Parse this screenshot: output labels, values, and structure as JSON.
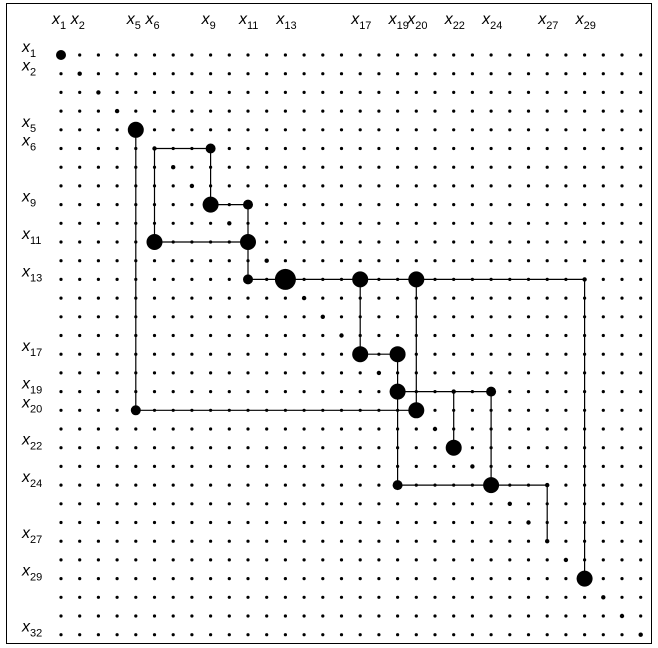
{
  "figure": {
    "variable": "x",
    "matrix_size": 32,
    "column_labels": [
      {
        "index": 1,
        "name": "x",
        "sub": "1"
      },
      {
        "index": 2,
        "name": "x",
        "sub": "2"
      },
      {
        "index": 5,
        "name": "x",
        "sub": "5"
      },
      {
        "index": 6,
        "name": "x",
        "sub": "6"
      },
      {
        "index": 9,
        "name": "x",
        "sub": "9"
      },
      {
        "index": 11,
        "name": "x",
        "sub": "11"
      },
      {
        "index": 13,
        "name": "x",
        "sub": "13"
      },
      {
        "index": 17,
        "name": "x",
        "sub": "17"
      },
      {
        "index": 19,
        "name": "x",
        "sub": "19"
      },
      {
        "index": 20,
        "name": "x",
        "sub": "20"
      },
      {
        "index": 22,
        "name": "x",
        "sub": "22"
      },
      {
        "index": 24,
        "name": "x",
        "sub": "24"
      },
      {
        "index": 27,
        "name": "x",
        "sub": "27"
      },
      {
        "index": 29,
        "name": "x",
        "sub": "29"
      }
    ],
    "row_labels": [
      {
        "index": 1,
        "name": "x",
        "sub": "1"
      },
      {
        "index": 2,
        "name": "x",
        "sub": "2"
      },
      {
        "index": 5,
        "name": "x",
        "sub": "5"
      },
      {
        "index": 6,
        "name": "x",
        "sub": "6"
      },
      {
        "index": 9,
        "name": "x",
        "sub": "9"
      },
      {
        "index": 11,
        "name": "x",
        "sub": "11"
      },
      {
        "index": 13,
        "name": "x",
        "sub": "13"
      },
      {
        "index": 17,
        "name": "x",
        "sub": "17"
      },
      {
        "index": 19,
        "name": "x",
        "sub": "19"
      },
      {
        "index": 20,
        "name": "x",
        "sub": "20"
      },
      {
        "index": 22,
        "name": "x",
        "sub": "22"
      },
      {
        "index": 24,
        "name": "x",
        "sub": "24"
      },
      {
        "index": 27,
        "name": "x",
        "sub": "27"
      },
      {
        "index": 29,
        "name": "x",
        "sub": "29"
      },
      {
        "index": 32,
        "name": "x",
        "sub": "32"
      }
    ],
    "entries": [
      {
        "row": 1,
        "col": 1,
        "size": "medium"
      },
      {
        "row": 2,
        "col": 2,
        "size": "small"
      },
      {
        "row": 3,
        "col": 3,
        "size": "small"
      },
      {
        "row": 4,
        "col": 4,
        "size": "small"
      },
      {
        "row": 5,
        "col": 5,
        "size": "large"
      },
      {
        "row": 6,
        "col": 6,
        "size": "small"
      },
      {
        "row": 6,
        "col": 9,
        "size": "medium"
      },
      {
        "row": 7,
        "col": 7,
        "size": "small"
      },
      {
        "row": 8,
        "col": 8,
        "size": "small"
      },
      {
        "row": 9,
        "col": 9,
        "size": "large"
      },
      {
        "row": 9,
        "col": 11,
        "size": "medium"
      },
      {
        "row": 10,
        "col": 10,
        "size": "small"
      },
      {
        "row": 11,
        "col": 6,
        "size": "large"
      },
      {
        "row": 11,
        "col": 11,
        "size": "large"
      },
      {
        "row": 12,
        "col": 12,
        "size": "small"
      },
      {
        "row": 13,
        "col": 11,
        "size": "medium"
      },
      {
        "row": 13,
        "col": 13,
        "size": "xlarge"
      },
      {
        "row": 13,
        "col": 17,
        "size": "large"
      },
      {
        "row": 13,
        "col": 20,
        "size": "large"
      },
      {
        "row": 13,
        "col": 29,
        "size": "small"
      },
      {
        "row": 14,
        "col": 14,
        "size": "small"
      },
      {
        "row": 15,
        "col": 15,
        "size": "small"
      },
      {
        "row": 16,
        "col": 16,
        "size": "small"
      },
      {
        "row": 17,
        "col": 17,
        "size": "large"
      },
      {
        "row": 17,
        "col": 19,
        "size": "large"
      },
      {
        "row": 18,
        "col": 18,
        "size": "small"
      },
      {
        "row": 19,
        "col": 19,
        "size": "large"
      },
      {
        "row": 19,
        "col": 22,
        "size": "small"
      },
      {
        "row": 19,
        "col": 24,
        "size": "medium"
      },
      {
        "row": 20,
        "col": 5,
        "size": "medium"
      },
      {
        "row": 20,
        "col": 20,
        "size": "large"
      },
      {
        "row": 21,
        "col": 21,
        "size": "small"
      },
      {
        "row": 22,
        "col": 22,
        "size": "large"
      },
      {
        "row": 23,
        "col": 23,
        "size": "small"
      },
      {
        "row": 24,
        "col": 19,
        "size": "medium"
      },
      {
        "row": 24,
        "col": 24,
        "size": "large"
      },
      {
        "row": 24,
        "col": 27,
        "size": "small"
      },
      {
        "row": 25,
        "col": 25,
        "size": "small"
      },
      {
        "row": 26,
        "col": 26,
        "size": "small"
      },
      {
        "row": 27,
        "col": 27,
        "size": "small"
      },
      {
        "row": 28,
        "col": 28,
        "size": "small"
      },
      {
        "row": 29,
        "col": 29,
        "size": "large"
      },
      {
        "row": 30,
        "col": 30,
        "size": "small"
      },
      {
        "row": 31,
        "col": 31,
        "size": "small"
      },
      {
        "row": 32,
        "col": 32,
        "size": "small"
      }
    ],
    "connections": [
      {
        "from": [
          6,
          6
        ],
        "to": [
          6,
          9
        ]
      },
      {
        "from": [
          6,
          9
        ],
        "to": [
          9,
          9
        ]
      },
      {
        "from": [
          6,
          6
        ],
        "to": [
          11,
          6
        ]
      },
      {
        "from": [
          11,
          6
        ],
        "to": [
          11,
          11
        ]
      },
      {
        "from": [
          9,
          9
        ],
        "to": [
          9,
          11
        ]
      },
      {
        "from": [
          9,
          11
        ],
        "to": [
          13,
          11
        ]
      },
      {
        "from": [
          13,
          11
        ],
        "to": [
          13,
          29
        ]
      },
      {
        "from": [
          5,
          5
        ],
        "to": [
          20,
          5
        ]
      },
      {
        "from": [
          20,
          5
        ],
        "to": [
          20,
          20
        ]
      },
      {
        "from": [
          13,
          17
        ],
        "to": [
          17,
          17
        ]
      },
      {
        "from": [
          17,
          17
        ],
        "to": [
          17,
          19
        ]
      },
      {
        "from": [
          17,
          19
        ],
        "to": [
          24,
          19
        ]
      },
      {
        "from": [
          24,
          19
        ],
        "to": [
          24,
          27
        ]
      },
      {
        "from": [
          13,
          20
        ],
        "to": [
          20,
          20
        ]
      },
      {
        "from": [
          19,
          19
        ],
        "to": [
          19,
          24
        ]
      },
      {
        "from": [
          19,
          22
        ],
        "to": [
          22,
          22
        ]
      },
      {
        "from": [
          19,
          24
        ],
        "to": [
          24,
          24
        ]
      },
      {
        "from": [
          24,
          27
        ],
        "to": [
          27,
          27
        ]
      },
      {
        "from": [
          13,
          29
        ],
        "to": [
          29,
          29
        ]
      }
    ]
  }
}
